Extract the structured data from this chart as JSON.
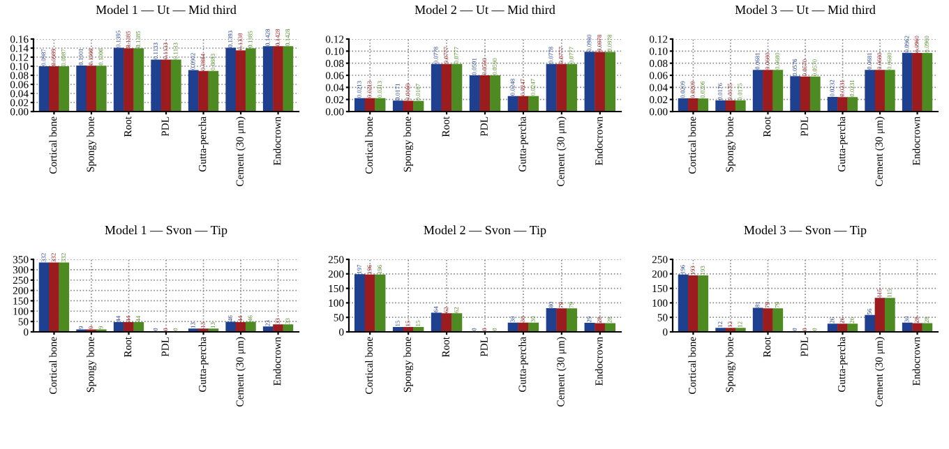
{
  "chart_data": [
    {
      "type": "bar",
      "title": "Model 1 — Ut — Mid third",
      "categories": [
        "Cortical bone",
        "Spongy bone",
        "Root",
        "PDL",
        "Gutta-percha",
        "Cement (30 μm)",
        "Endocrown"
      ],
      "ylim": [
        0,
        0.16
      ],
      "yticks": [
        {
          "value": 0,
          "label": "0.00"
        },
        0.02,
        0.04,
        0.06,
        0.08,
        {
          "value": 0.1,
          "label": "0.10"
        },
        {
          "value": 0.12,
          "label": "0.12"
        },
        0.14,
        {
          "value": 0.16,
          "label": "0.16"
        }
      ],
      "grid": true,
      "series": [
        {
          "color": "#1f3f8f",
          "values": [
            0.0987,
            0.1001,
            0.1395,
            0.1133,
            0.0902,
            0.1393,
            0.1428
          ],
          "value_labels": [
            "0.0987",
            "0.1001",
            "0.1395",
            "0.1133",
            "0.0902",
            "0.1393",
            "0.1428"
          ]
        },
        {
          "color": "#9b1c1f",
          "values": [
            0.0989,
            0.1,
            0.1385,
            0.1133,
            0.0884,
            0.1338,
            0.1428
          ],
          "value_labels": [
            "0.0989",
            "0.1000",
            "0.1385",
            "0.1133",
            "0.0884",
            "0.1338",
            "0.1428"
          ]
        },
        {
          "color": "#4e8a22",
          "values": [
            0.0987,
            0.1,
            0.1385,
            0.1133,
            0.0883,
            0.1385,
            0.1428
          ],
          "value_labels": [
            "0.0987",
            "0.1000",
            "0.1385",
            "0.1133",
            "0.0883",
            "0.1385",
            "0.1428"
          ]
        }
      ]
    },
    {
      "type": "bar",
      "title": "Model 2 — Ut — Mid third",
      "categories": [
        "Cortical bone",
        "Spongy bone",
        "Root",
        "PDL",
        "Gutta-percha",
        "Cement (30 μm)",
        "Endocrown"
      ],
      "ylim": [
        0,
        0.12
      ],
      "yticks": [
        {
          "value": 0,
          "label": "0.00"
        },
        0.02,
        0.04,
        0.06,
        0.08,
        {
          "value": 0.1,
          "label": "0.10"
        },
        0.12
      ],
      "grid": true,
      "series": [
        {
          "color": "#1f3f8f",
          "values": [
            0.0213,
            0.0171,
            0.0778,
            0.0591,
            0.0248,
            0.0778,
            0.098
          ],
          "value_labels": [
            "0.0213",
            "0.0171",
            "0.0778",
            "0.0591",
            "0.0248",
            "0.0778",
            "0.0980"
          ]
        },
        {
          "color": "#9b1c1f",
          "values": [
            0.0213,
            0.0169,
            0.0777,
            0.059,
            0.0247,
            0.0777,
            0.0978
          ],
          "value_labels": [
            "0.0213",
            "0.0169",
            "0.0777",
            "0.0590",
            "0.0247",
            "0.0777",
            "0.0978"
          ]
        },
        {
          "color": "#4e8a22",
          "values": [
            0.0213,
            0.0167,
            0.0777,
            0.059,
            0.0247,
            0.0777,
            0.0978
          ],
          "value_labels": [
            "0.0213",
            "0.0167",
            "0.0777",
            "0.0590",
            "0.0247",
            "0.0777",
            "0.0978"
          ]
        }
      ]
    },
    {
      "type": "bar",
      "title": "Model 3 — Ut — Mid third",
      "categories": [
        "Cortical bone",
        "Spongy bone",
        "Root",
        "PDL",
        "Gutta-percha",
        "Cement (30 μm)",
        "Endocrown"
      ],
      "ylim": [
        0,
        0.12
      ],
      "yticks": [
        {
          "value": 0,
          "label": "0.00"
        },
        0.02,
        0.04,
        0.06,
        0.08,
        {
          "value": 0.1,
          "label": "0.10"
        },
        0.12
      ],
      "grid": true,
      "series": [
        {
          "color": "#1f3f8f",
          "values": [
            0.0209,
            0.0176,
            0.0681,
            0.0576,
            0.0232,
            0.0681,
            0.0962
          ],
          "value_labels": [
            "0.0209",
            "0.0176",
            "0.0681",
            "0.0576",
            "0.0232",
            "0.0681",
            "0.0962"
          ]
        },
        {
          "color": "#9b1c1f",
          "values": [
            0.0209,
            0.0175,
            0.068,
            0.057,
            0.0231,
            0.068,
            0.096
          ],
          "value_labels": [
            "0.0209",
            "0.0175",
            "0.0680",
            "0.0570",
            "0.0231",
            "0.0680",
            "0.0960"
          ]
        },
        {
          "color": "#4e8a22",
          "values": [
            0.0206,
            0.0175,
            0.068,
            0.057,
            0.0231,
            0.068,
            0.096
          ],
          "value_labels": [
            "0.0206",
            "0.0175",
            "0.0680",
            "0.0570",
            "0.0231",
            "0.0680",
            "0.0960"
          ]
        }
      ]
    },
    {
      "type": "bar",
      "title": "Model 1 — Svon — Tip",
      "categories": [
        "Cortical bone",
        "Spongy bone",
        "Root",
        "PDL",
        "Gutta-percha",
        "Cement (30 μm)",
        "Endocrown"
      ],
      "ylim": [
        0,
        350
      ],
      "yticks": [
        0,
        50,
        100,
        150,
        200,
        250,
        300,
        350
      ],
      "grid": true,
      "data_labels": true,
      "series": [
        {
          "color": "#1f3f8f",
          "values": [
            332,
            9,
            44,
            0,
            13,
            46,
            23
          ]
        },
        {
          "color": "#9b1c1f",
          "values": [
            332,
            9,
            44,
            0,
            13,
            44,
            33
          ]
        },
        {
          "color": "#4e8a22",
          "values": [
            332,
            9,
            44,
            0,
            13,
            46,
            33
          ]
        }
      ]
    },
    {
      "type": "bar",
      "title": "Model 2 — Svon — Tip",
      "categories": [
        "Cortical bone",
        "Spongy bone",
        "Root",
        "PDL",
        "Gutta-percha",
        "Cement (30 μm)",
        "Endocrown"
      ],
      "ylim": [
        0,
        250
      ],
      "yticks": [
        0,
        50,
        100,
        150,
        200,
        250
      ],
      "grid": true,
      "data_labels": true,
      "series": [
        {
          "color": "#1f3f8f",
          "values": [
            197,
            15,
            64,
            0,
            30,
            80,
            29
          ]
        },
        {
          "color": "#9b1c1f",
          "values": [
            196,
            15,
            62,
            0,
            30,
            79,
            28
          ]
        },
        {
          "color": "#4e8a22",
          "values": [
            196,
            15,
            62,
            0,
            30,
            79,
            28
          ]
        }
      ]
    },
    {
      "type": "bar",
      "title": "Model 3 — Svon — Tip",
      "categories": [
        "Cortical bone",
        "Spongy bone",
        "Root",
        "PDL",
        "Gutta-percha",
        "Cement (30 μm)",
        "Endocrown"
      ],
      "ylim": [
        0,
        250
      ],
      "yticks": [
        0,
        50,
        100,
        150,
        200,
        250
      ],
      "grid": true,
      "data_labels": true,
      "series": [
        {
          "color": "#1f3f8f",
          "values": [
            196,
            12,
            81,
            0,
            26,
            56,
            30
          ]
        },
        {
          "color": "#9b1c1f",
          "values": [
            193,
            12,
            79,
            0,
            26,
            115,
            28
          ]
        },
        {
          "color": "#4e8a22",
          "values": [
            193,
            12,
            79,
            0,
            26,
            115,
            28
          ]
        }
      ]
    }
  ]
}
